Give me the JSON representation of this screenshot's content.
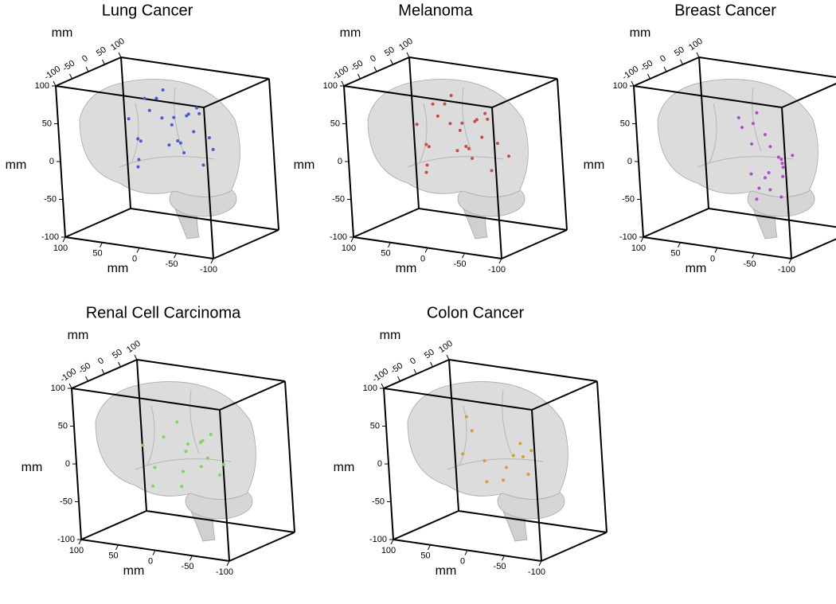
{
  "chart_data": [
    {
      "type": "scatter3d",
      "title": "Lung Cancer",
      "xlabel": "mm",
      "ylabel": "mm",
      "zlabel": "mm",
      "color": "#4a5bd4",
      "xlim": [
        100,
        -100
      ],
      "xticks": [
        100,
        50,
        0,
        -50,
        -100
      ],
      "ylim": [
        -100,
        100
      ],
      "yticks": [
        -100,
        -50,
        0,
        50,
        100
      ],
      "zlim": [
        -100,
        100
      ],
      "zticks": [
        100,
        50,
        0,
        -50,
        -100
      ],
      "x": [
        40,
        20,
        0,
        -20,
        -40,
        30,
        10,
        -10,
        -30,
        -50,
        25,
        5,
        -15,
        -35,
        15,
        -5,
        -25,
        35,
        -45,
        0,
        20,
        -20,
        45,
        -10
      ],
      "y": [
        -20,
        0,
        20,
        40,
        10,
        -10,
        30,
        50,
        0,
        20,
        -30,
        -10,
        10,
        30,
        60,
        40,
        -20,
        20,
        40,
        0,
        -40,
        60,
        10,
        -30
      ],
      "z": [
        50,
        60,
        40,
        30,
        70,
        20,
        10,
        50,
        60,
        30,
        0,
        80,
        20,
        -10,
        40,
        0,
        30,
        70,
        10,
        90,
        30,
        50,
        -20,
        60
      ]
    },
    {
      "type": "scatter3d",
      "title": "Melanoma",
      "xlabel": "mm",
      "ylabel": "mm",
      "zlabel": "mm",
      "color": "#cc4a44",
      "xlim": [
        100,
        -100
      ],
      "xticks": [
        100,
        50,
        0,
        -50,
        -100
      ],
      "ylim": [
        -100,
        100
      ],
      "yticks": [
        -100,
        -50,
        0,
        50,
        100
      ],
      "zlim": [
        -100,
        100
      ],
      "zticks": [
        100,
        50,
        0,
        -50,
        -100
      ],
      "x": [
        45,
        25,
        5,
        -15,
        -35,
        35,
        15,
        -5,
        -25,
        -45,
        30,
        10,
        -10,
        -30,
        20,
        0,
        -20,
        40,
        -50,
        5,
        25,
        -15,
        50,
        -5
      ],
      "y": [
        -10,
        10,
        30,
        50,
        20,
        0,
        40,
        60,
        10,
        30,
        -20,
        0,
        20,
        40,
        70,
        50,
        -10,
        30,
        50,
        10,
        -30,
        70,
        20,
        -20
      ],
      "z": [
        40,
        50,
        30,
        20,
        60,
        10,
        0,
        40,
        50,
        20,
        -10,
        70,
        10,
        -20,
        30,
        -10,
        20,
        60,
        0,
        80,
        20,
        40,
        -30,
        50
      ]
    },
    {
      "type": "scatter3d",
      "title": "Breast Cancer",
      "xlabel": "mm",
      "ylabel": "mm",
      "zlabel": "mm",
      "color": "#b44ad0",
      "xlim": [
        100,
        -100
      ],
      "xticks": [
        100,
        50,
        0,
        -50,
        -100
      ],
      "ylim": [
        -100,
        100
      ],
      "yticks": [
        -100,
        -50,
        0,
        50,
        100
      ],
      "zlim": [
        -100,
        100
      ],
      "zticks": [
        100,
        50,
        0,
        -50,
        -100
      ],
      "x": [
        -40,
        -50,
        -30,
        -60,
        -45,
        -35,
        -55,
        -20,
        0,
        10,
        -25,
        -40,
        -50,
        -30,
        -10,
        20,
        -45,
        -60,
        -35,
        -15
      ],
      "y": [
        -20,
        0,
        -10,
        10,
        -30,
        0,
        -20,
        20,
        30,
        10,
        -40,
        20,
        -10,
        -30,
        0,
        40,
        10,
        -20,
        -50,
        10
      ],
      "z": [
        -10,
        0,
        -20,
        10,
        -30,
        20,
        -40,
        30,
        40,
        50,
        -10,
        0,
        10,
        -30,
        20,
        30,
        -20,
        0,
        -40,
        60
      ]
    },
    {
      "type": "scatter3d",
      "title": "Renal Cell Carcinoma",
      "xlabel": "mm",
      "ylabel": "mm",
      "zlabel": "mm",
      "color": "#7fd65a",
      "xlim": [
        100,
        -100
      ],
      "xticks": [
        100,
        50,
        0,
        -50,
        -100
      ],
      "ylim": [
        -100,
        100
      ],
      "yticks": [
        -100,
        -50,
        0,
        50,
        100
      ],
      "zlim": [
        -100,
        100
      ],
      "zticks": [
        100,
        50,
        0,
        -50,
        -100
      ],
      "x": [
        40,
        20,
        0,
        -20,
        -40,
        30,
        10,
        -10,
        -30,
        -50,
        25,
        5,
        -15,
        -35,
        15,
        -5
      ],
      "y": [
        -30,
        -10,
        10,
        30,
        0,
        -20,
        20,
        40,
        -10,
        10,
        -40,
        0,
        20,
        30,
        50,
        -20
      ],
      "z": [
        20,
        30,
        10,
        0,
        40,
        -10,
        -20,
        20,
        30,
        0,
        -30,
        50,
        -10,
        -20,
        10,
        -30
      ]
    },
    {
      "type": "scatter3d",
      "title": "Colon Cancer",
      "xlabel": "mm",
      "ylabel": "mm",
      "zlabel": "mm",
      "color": "#d4a030",
      "xlim": [
        100,
        -100
      ],
      "xticks": [
        100,
        50,
        0,
        -50,
        -100
      ],
      "ylim": [
        -100,
        100
      ],
      "yticks": [
        -100,
        -50,
        0,
        50,
        100
      ],
      "zlim": [
        -100,
        100
      ],
      "zticks": [
        100,
        50,
        0,
        -50,
        -100
      ],
      "x": [
        30,
        10,
        -10,
        -30,
        -50,
        20,
        0,
        -20,
        -40,
        40,
        -5,
        -25
      ],
      "y": [
        -30,
        -10,
        10,
        30,
        0,
        -20,
        20,
        40,
        -10,
        10,
        -40,
        0
      ],
      "z": [
        10,
        0,
        -10,
        -20,
        20,
        40,
        -30,
        0,
        30,
        50,
        -20,
        10
      ]
    }
  ]
}
